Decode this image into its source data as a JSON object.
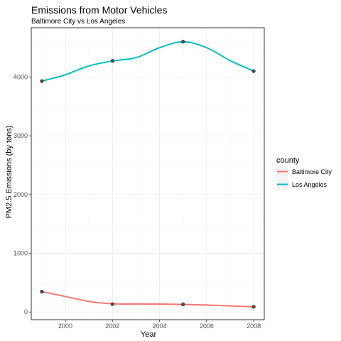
{
  "chart_data": {
    "type": "line",
    "title": "Emissions from Motor Vehicles",
    "subtitle": "Baltimore City vs Los Angeles",
    "xlabel": "Year",
    "ylabel": "PM2.5 Emissions (by tons)",
    "xlim": [
      1998.55,
      2008.45
    ],
    "ylim": [
      -130,
      4840
    ],
    "x_ticks": [
      2000,
      2002,
      2004,
      2006,
      2008
    ],
    "y_ticks": [
      0,
      1000,
      2000,
      3000,
      4000
    ],
    "grid": true,
    "legend": {
      "title": "county",
      "position": "right"
    },
    "series": [
      {
        "name": "Baltimore City",
        "color": "#F8766D",
        "points": [
          {
            "x": 1999,
            "y": 347
          },
          {
            "x": 2002,
            "y": 134
          },
          {
            "x": 2005,
            "y": 130
          },
          {
            "x": 2008,
            "y": 89
          }
        ],
        "smooth": [
          {
            "x": 1999,
            "y": 347
          },
          {
            "x": 2000,
            "y": 265
          },
          {
            "x": 2001,
            "y": 180
          },
          {
            "x": 2002,
            "y": 140
          },
          {
            "x": 2003,
            "y": 137
          },
          {
            "x": 2004,
            "y": 136
          },
          {
            "x": 2005,
            "y": 130
          },
          {
            "x": 2006,
            "y": 120
          },
          {
            "x": 2007,
            "y": 104
          },
          {
            "x": 2008,
            "y": 89
          }
        ]
      },
      {
        "name": "Los Angeles",
        "color": "#00BFC4",
        "points": [
          {
            "x": 1999,
            "y": 3931
          },
          {
            "x": 2002,
            "y": 4274
          },
          {
            "x": 2005,
            "y": 4601
          },
          {
            "x": 2008,
            "y": 4101
          }
        ],
        "smooth": [
          {
            "x": 1999,
            "y": 3931
          },
          {
            "x": 2000,
            "y": 4040
          },
          {
            "x": 2001,
            "y": 4190
          },
          {
            "x": 2002,
            "y": 4274
          },
          {
            "x": 2003,
            "y": 4330
          },
          {
            "x": 2004,
            "y": 4500
          },
          {
            "x": 2005,
            "y": 4601
          },
          {
            "x": 2006,
            "y": 4500
          },
          {
            "x": 2007,
            "y": 4280
          },
          {
            "x": 2008,
            "y": 4101
          }
        ]
      }
    ]
  }
}
